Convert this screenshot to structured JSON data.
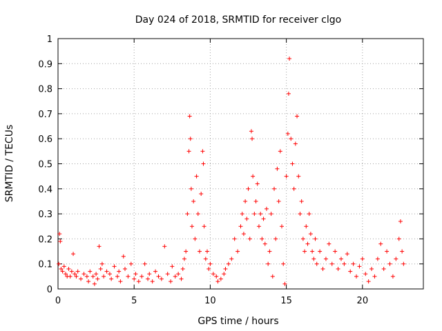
{
  "chart_data": {
    "type": "scatter",
    "title": "Day 024 of 2018, SRMTID for receiver clgo",
    "xlabel": "GPS time / hours",
    "ylabel": "SRMTID / TECUs",
    "xlim": [
      0,
      24
    ],
    "ylim": [
      0,
      1
    ],
    "grid": true,
    "x_ticks": [
      0,
      5,
      10,
      15,
      20
    ],
    "x_tick_labels": [
      "0",
      "5",
      "10",
      "15",
      "20"
    ],
    "y_ticks": [
      0,
      0.1,
      0.2,
      0.3,
      0.4,
      0.5,
      0.6,
      0.7,
      0.8,
      0.9,
      1
    ],
    "y_tick_labels": [
      "0",
      "0.1",
      "0.2",
      "0.3",
      "0.4",
      "0.5",
      "0.6",
      "0.7",
      "0.8",
      "0.9",
      "1"
    ],
    "marker": "+",
    "color": "#ff0000",
    "series": [
      {
        "name": "SRMTID",
        "points": [
          [
            0.05,
            0.1
          ],
          [
            0.1,
            0.22
          ],
          [
            0.15,
            0.19
          ],
          [
            0.2,
            0.08
          ],
          [
            0.3,
            0.07
          ],
          [
            0.4,
            0.09
          ],
          [
            0.5,
            0.06
          ],
          [
            0.6,
            0.05
          ],
          [
            0.7,
            0.08
          ],
          [
            0.8,
            0.05
          ],
          [
            0.9,
            0.07
          ],
          [
            1.0,
            0.14
          ],
          [
            1.1,
            0.06
          ],
          [
            1.2,
            0.05
          ],
          [
            1.3,
            0.07
          ],
          [
            1.5,
            0.04
          ],
          [
            1.7,
            0.06
          ],
          [
            1.9,
            0.05
          ],
          [
            2.0,
            0.03
          ],
          [
            2.1,
            0.07
          ],
          [
            2.3,
            0.05
          ],
          [
            2.4,
            0.02
          ],
          [
            2.5,
            0.06
          ],
          [
            2.6,
            0.04
          ],
          [
            2.7,
            0.17
          ],
          [
            2.8,
            0.08
          ],
          [
            2.9,
            0.1
          ],
          [
            3.0,
            0.05
          ],
          [
            3.2,
            0.07
          ],
          [
            3.4,
            0.06
          ],
          [
            3.5,
            0.04
          ],
          [
            3.7,
            0.09
          ],
          [
            3.9,
            0.05
          ],
          [
            4.0,
            0.07
          ],
          [
            4.1,
            0.03
          ],
          [
            4.3,
            0.13
          ],
          [
            4.4,
            0.08
          ],
          [
            4.6,
            0.05
          ],
          [
            4.8,
            0.1
          ],
          [
            5.0,
            0.04
          ],
          [
            5.1,
            0.06
          ],
          [
            5.3,
            0.03
          ],
          [
            5.5,
            0.05
          ],
          [
            5.7,
            0.1
          ],
          [
            5.9,
            0.04
          ],
          [
            6.0,
            0.06
          ],
          [
            6.2,
            0.03
          ],
          [
            6.4,
            0.07
          ],
          [
            6.6,
            0.05
          ],
          [
            6.8,
            0.04
          ],
          [
            7.0,
            0.17
          ],
          [
            7.2,
            0.06
          ],
          [
            7.4,
            0.03
          ],
          [
            7.5,
            0.09
          ],
          [
            7.7,
            0.05
          ],
          [
            7.9,
            0.06
          ],
          [
            8.1,
            0.04
          ],
          [
            8.2,
            0.08
          ],
          [
            8.3,
            0.12
          ],
          [
            8.4,
            0.15
          ],
          [
            8.5,
            0.3
          ],
          [
            8.6,
            0.55
          ],
          [
            8.65,
            0.69
          ],
          [
            8.7,
            0.6
          ],
          [
            8.75,
            0.4
          ],
          [
            8.8,
            0.25
          ],
          [
            8.9,
            0.35
          ],
          [
            9.0,
            0.2
          ],
          [
            9.1,
            0.45
          ],
          [
            9.2,
            0.3
          ],
          [
            9.3,
            0.15
          ],
          [
            9.4,
            0.38
          ],
          [
            9.5,
            0.55
          ],
          [
            9.55,
            0.5
          ],
          [
            9.6,
            0.25
          ],
          [
            9.7,
            0.12
          ],
          [
            9.8,
            0.15
          ],
          [
            9.9,
            0.08
          ],
          [
            10.0,
            0.1
          ],
          [
            10.2,
            0.06
          ],
          [
            10.4,
            0.05
          ],
          [
            10.5,
            0.03
          ],
          [
            10.7,
            0.04
          ],
          [
            10.9,
            0.06
          ],
          [
            11.0,
            0.08
          ],
          [
            11.2,
            0.1
          ],
          [
            11.4,
            0.12
          ],
          [
            11.6,
            0.2
          ],
          [
            11.8,
            0.15
          ],
          [
            12.0,
            0.25
          ],
          [
            12.1,
            0.3
          ],
          [
            12.2,
            0.22
          ],
          [
            12.3,
            0.35
          ],
          [
            12.4,
            0.28
          ],
          [
            12.5,
            0.4
          ],
          [
            12.6,
            0.2
          ],
          [
            12.7,
            0.63
          ],
          [
            12.75,
            0.6
          ],
          [
            12.8,
            0.45
          ],
          [
            12.9,
            0.3
          ],
          [
            13.0,
            0.35
          ],
          [
            13.1,
            0.42
          ],
          [
            13.2,
            0.25
          ],
          [
            13.3,
            0.3
          ],
          [
            13.4,
            0.2
          ],
          [
            13.5,
            0.28
          ],
          [
            13.6,
            0.18
          ],
          [
            13.7,
            0.32
          ],
          [
            13.8,
            0.1
          ],
          [
            13.9,
            0.15
          ],
          [
            14.0,
            0.3
          ],
          [
            14.1,
            0.05
          ],
          [
            14.2,
            0.4
          ],
          [
            14.3,
            0.2
          ],
          [
            14.4,
            0.48
          ],
          [
            14.5,
            0.35
          ],
          [
            14.6,
            0.55
          ],
          [
            14.7,
            0.25
          ],
          [
            14.8,
            0.1
          ],
          [
            14.9,
            0.02
          ],
          [
            15.0,
            0.45
          ],
          [
            15.1,
            0.62
          ],
          [
            15.15,
            0.78
          ],
          [
            15.2,
            0.92
          ],
          [
            15.3,
            0.6
          ],
          [
            15.4,
            0.5
          ],
          [
            15.5,
            0.4
          ],
          [
            15.6,
            0.58
          ],
          [
            15.7,
            0.69
          ],
          [
            15.8,
            0.45
          ],
          [
            15.9,
            0.3
          ],
          [
            16.0,
            0.35
          ],
          [
            16.1,
            0.2
          ],
          [
            16.2,
            0.15
          ],
          [
            16.3,
            0.25
          ],
          [
            16.4,
            0.18
          ],
          [
            16.5,
            0.3
          ],
          [
            16.6,
            0.22
          ],
          [
            16.7,
            0.15
          ],
          [
            16.8,
            0.12
          ],
          [
            16.9,
            0.2
          ],
          [
            17.0,
            0.1
          ],
          [
            17.2,
            0.15
          ],
          [
            17.4,
            0.08
          ],
          [
            17.6,
            0.12
          ],
          [
            17.8,
            0.18
          ],
          [
            18.0,
            0.1
          ],
          [
            18.2,
            0.15
          ],
          [
            18.4,
            0.08
          ],
          [
            18.6,
            0.12
          ],
          [
            18.8,
            0.1
          ],
          [
            19.0,
            0.14
          ],
          [
            19.2,
            0.07
          ],
          [
            19.4,
            0.1
          ],
          [
            19.6,
            0.05
          ],
          [
            19.8,
            0.09
          ],
          [
            20.0,
            0.12
          ],
          [
            20.2,
            0.06
          ],
          [
            20.4,
            0.03
          ],
          [
            20.6,
            0.08
          ],
          [
            20.8,
            0.05
          ],
          [
            21.0,
            0.12
          ],
          [
            21.2,
            0.18
          ],
          [
            21.4,
            0.08
          ],
          [
            21.6,
            0.15
          ],
          [
            21.8,
            0.1
          ],
          [
            22.0,
            0.05
          ],
          [
            22.2,
            0.12
          ],
          [
            22.4,
            0.2
          ],
          [
            22.5,
            0.27
          ],
          [
            22.6,
            0.15
          ],
          [
            22.7,
            0.1
          ]
        ]
      }
    ]
  }
}
